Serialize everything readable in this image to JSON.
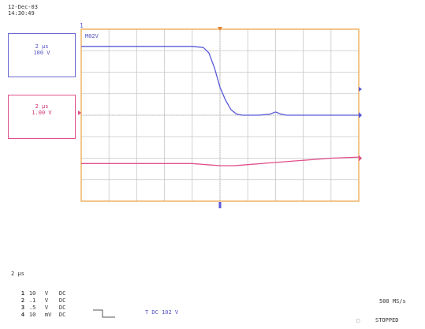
{
  "header": {
    "date": "12-Dec-03",
    "time": "14:30:49"
  },
  "ch1_box": {
    "scale": "2 µs",
    "volts": "100 V"
  },
  "ch2_box": {
    "scale": "2 µs",
    "volts": "1.00 V"
  },
  "ch_label": "M02V",
  "timebase": "2 µs",
  "channels": [
    {
      "num": "1",
      "value": "10",
      "unit": "V",
      "coupling": "DC"
    },
    {
      "num": "2",
      "value": ".1",
      "unit": "V",
      "coupling": "DC"
    },
    {
      "num": "3",
      "value": ".5",
      "unit": "V",
      "coupling": "DC"
    },
    {
      "num": "4",
      "value": "10",
      "unit": "mV",
      "coupling": "DC"
    }
  ],
  "trigger": {
    "info": "T DC 102 V"
  },
  "sample_rate": "500 MS/s",
  "status": "STOPPED",
  "colors": {
    "ch1": "#5a5ad8",
    "ch2": "#e0508a",
    "grid": "#c8c8c8",
    "frame": "#e8a040"
  },
  "chart_data": {
    "type": "line",
    "title": "",
    "xlabel": "",
    "ylabel": "",
    "xlim": [
      -5,
      5
    ],
    "ylim": [
      -4,
      4
    ],
    "grid": true,
    "series": [
      {
        "x": [
          -5,
          -4,
          -3,
          -2,
          -1.0,
          -0.6,
          -0.4,
          -0.2,
          0.0,
          0.2,
          0.4,
          0.6,
          0.8,
          1.0,
          1.4,
          1.8,
          2.0,
          2.2,
          2.4,
          2.6,
          3,
          4,
          5
        ],
        "y": [
          3.2,
          3.2,
          3.2,
          3.2,
          3.2,
          3.15,
          2.9,
          2.2,
          1.3,
          0.7,
          0.25,
          0.05,
          0.0,
          0.0,
          0.0,
          0.05,
          0.15,
          0.05,
          0.0,
          0.0,
          0.0,
          0.0,
          0.0
        ]
      },
      {
        "x": [
          -5,
          -4,
          -3,
          -2,
          -1,
          -0.5,
          0,
          0.5,
          1,
          2,
          3,
          4,
          5
        ],
        "y": [
          -2.25,
          -2.25,
          -2.25,
          -2.25,
          -2.25,
          -2.3,
          -2.35,
          -2.35,
          -2.3,
          -2.2,
          -2.1,
          -2.0,
          -1.95
        ]
      }
    ]
  }
}
